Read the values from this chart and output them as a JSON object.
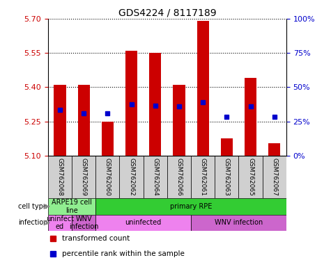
{
  "title": "GDS4224 / 8117189",
  "samples": [
    "GSM762068",
    "GSM762069",
    "GSM762060",
    "GSM762062",
    "GSM762064",
    "GSM762066",
    "GSM762061",
    "GSM762063",
    "GSM762065",
    "GSM762067"
  ],
  "bar_values": [
    5.41,
    5.41,
    5.25,
    5.56,
    5.55,
    5.41,
    5.69,
    5.175,
    5.44,
    5.155
  ],
  "bar_base": 5.1,
  "blue_values": [
    5.3,
    5.285,
    5.285,
    5.325,
    5.32,
    5.315,
    5.335,
    5.27,
    5.315,
    5.27
  ],
  "ylim": [
    5.1,
    5.7
  ],
  "yticks": [
    5.1,
    5.25,
    5.4,
    5.55,
    5.7
  ],
  "y2ticks": [
    0,
    25,
    50,
    75,
    100
  ],
  "y2labels": [
    "0%",
    "25%",
    "50%",
    "75%",
    "100%"
  ],
  "bar_color": "#cc0000",
  "blue_color": "#0000cc",
  "cell_type_row": {
    "groups": [
      {
        "text": "ARPE19 cell\nline",
        "color": "#90ee90",
        "span": [
          0,
          2
        ]
      },
      {
        "text": "primary RPE",
        "color": "#33cc33",
        "span": [
          2,
          10
        ]
      }
    ]
  },
  "infection_row": {
    "groups": [
      {
        "text": "uninfect\ned",
        "color": "#ee82ee",
        "span": [
          0,
          1
        ]
      },
      {
        "text": "WNV\ninfection",
        "color": "#cc66cc",
        "span": [
          1,
          2
        ]
      },
      {
        "text": "uninfected",
        "color": "#ee82ee",
        "span": [
          2,
          6
        ]
      },
      {
        "text": "WNV infection",
        "color": "#cc66cc",
        "span": [
          6,
          10
        ]
      }
    ]
  },
  "legend_items": [
    {
      "color": "#cc0000",
      "label": "transformed count"
    },
    {
      "color": "#0000cc",
      "label": "percentile rank within the sample"
    }
  ],
  "bar_width": 0.5,
  "label_fontsize": 7,
  "sample_bg": "#d0d0d0"
}
